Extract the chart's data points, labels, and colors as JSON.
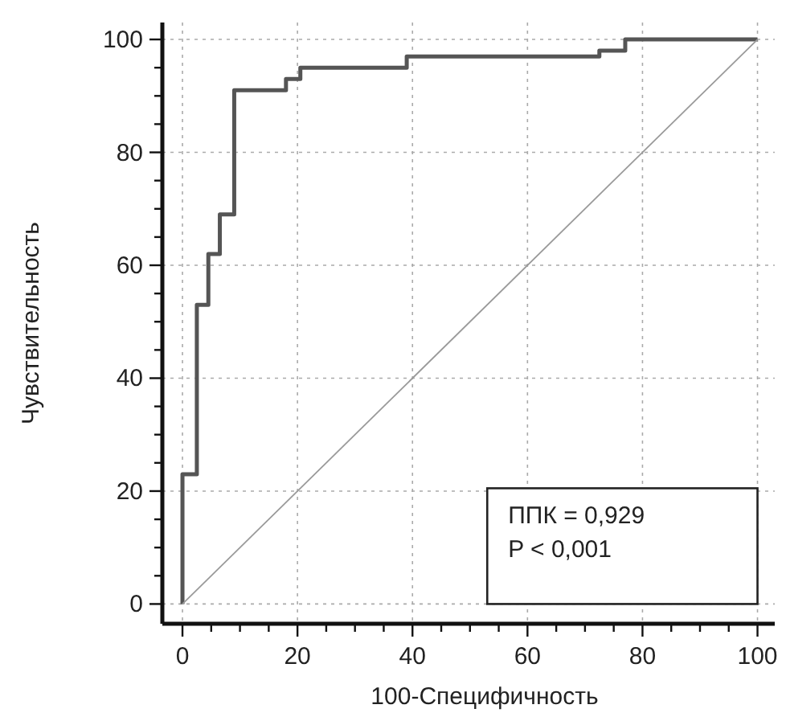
{
  "chart_data": {
    "type": "step",
    "xlabel": "100-Специфичность",
    "ylabel": "Чувствительность",
    "xlim": [
      -3.5,
      103
    ],
    "ylim": [
      -3.5,
      103
    ],
    "xticks": [
      0,
      {
        "value": 5,
        "label": null
      },
      {
        "value": 10,
        "label": null
      },
      {
        "value": 15,
        "label": null
      },
      20,
      {
        "value": 25,
        "label": null
      },
      {
        "value": 30,
        "label": null
      },
      {
        "value": 35,
        "label": null
      },
      40,
      {
        "value": 45,
        "label": null
      },
      {
        "value": 50,
        "label": null
      },
      {
        "value": 55,
        "label": null
      },
      60,
      {
        "value": 65,
        "label": null
      },
      {
        "value": 70,
        "label": null
      },
      {
        "value": 75,
        "label": null
      },
      80,
      {
        "value": 85,
        "label": null
      },
      {
        "value": 90,
        "label": null
      },
      {
        "value": 95,
        "label": null
      },
      100
    ],
    "yticks": [
      0,
      {
        "value": 5,
        "label": null
      },
      {
        "value": 10,
        "label": null
      },
      {
        "value": 15,
        "label": null
      },
      20,
      {
        "value": 25,
        "label": null
      },
      {
        "value": 30,
        "label": null
      },
      {
        "value": 35,
        "label": null
      },
      40,
      {
        "value": 45,
        "label": null
      },
      {
        "value": 50,
        "label": null
      },
      {
        "value": 55,
        "label": null
      },
      60,
      {
        "value": 65,
        "label": null
      },
      {
        "value": 70,
        "label": null
      },
      {
        "value": 75,
        "label": null
      },
      80,
      {
        "value": 85,
        "label": null
      },
      {
        "value": 90,
        "label": null
      },
      {
        "value": 95,
        "label": null
      },
      100
    ],
    "grid": true,
    "line_style": "solid",
    "series": [
      {
        "color": "#555555",
        "x": [
          0,
          0,
          2.5,
          4.5,
          6.5,
          9,
          18,
          20.5,
          39,
          72.5,
          77,
          100
        ],
        "values": [
          0,
          23,
          53,
          62,
          69,
          91,
          93,
          95,
          97,
          98,
          100,
          100
        ]
      },
      {
        "type": "line",
        "color": "#9a9a9a",
        "x": [
          0,
          100
        ],
        "values": [
          0,
          100
        ]
      }
    ],
    "annotations": [
      "ППК = 0,929",
      "P < 0,001"
    ]
  }
}
